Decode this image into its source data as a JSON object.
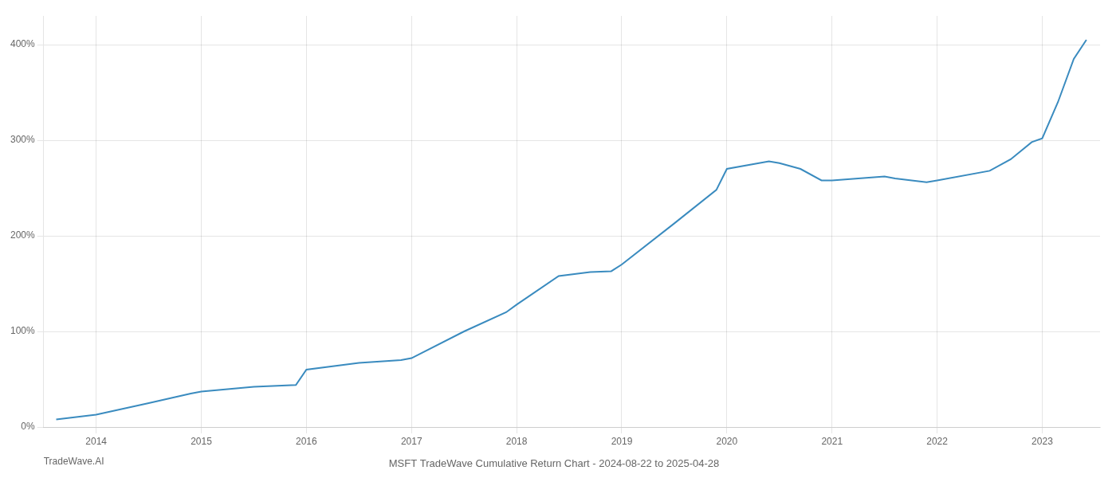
{
  "chart_data": {
    "type": "line",
    "title": "MSFT TradeWave Cumulative Return Chart - 2024-08-22 to 2025-04-28",
    "annotations": [
      "TradeWave.AI"
    ],
    "x": [
      2013.62,
      2014.0,
      2014.5,
      2014.9,
      2015.0,
      2015.5,
      2015.9,
      2016.0,
      2016.5,
      2016.9,
      2017.0,
      2017.5,
      2017.9,
      2018.0,
      2018.4,
      2018.7,
      2018.9,
      2019.0,
      2019.5,
      2019.9,
      2020.0,
      2020.4,
      2020.5,
      2020.7,
      2020.9,
      2021.0,
      2021.5,
      2021.6,
      2021.9,
      2022.0,
      2022.5,
      2022.7,
      2022.9,
      2023.0,
      2023.15,
      2023.3,
      2023.42
    ],
    "values": [
      8,
      13,
      25,
      35,
      37,
      42,
      44,
      60,
      67,
      70,
      72,
      100,
      120,
      128,
      158,
      162,
      163,
      170,
      213,
      248,
      270,
      278,
      276,
      270,
      258,
      258,
      262,
      260,
      256,
      258,
      268,
      280,
      298,
      302,
      340,
      385,
      405
    ],
    "color": "#3a8bbf",
    "xlim": [
      2013.5,
      2023.55
    ],
    "xticks": [
      2014,
      2015,
      2016,
      2017,
      2018,
      2019,
      2020,
      2021,
      2022,
      2023
    ],
    "ylim": [
      0,
      430
    ],
    "yticks": [
      {
        "value": 0,
        "label": "0%"
      },
      {
        "value": 100,
        "label": "100%"
      },
      {
        "value": 200,
        "label": "200%"
      },
      {
        "value": 300,
        "label": "300%"
      },
      {
        "value": 400,
        "label": "400%"
      }
    ],
    "grid": true
  }
}
